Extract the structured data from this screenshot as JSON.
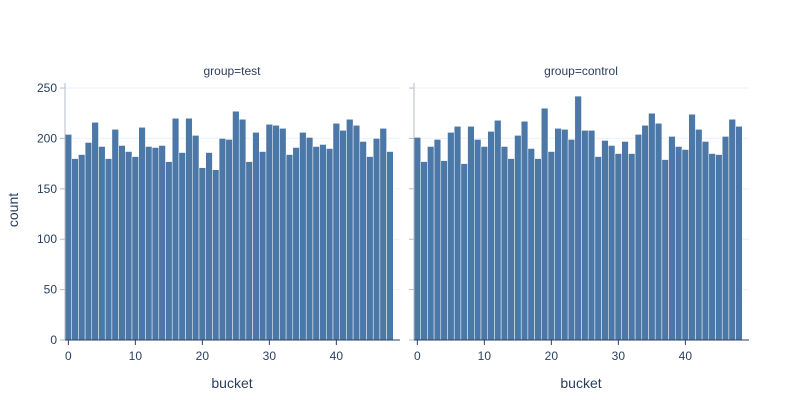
{
  "chart_data": {
    "type": "bar",
    "ylabel": "count",
    "xlabel": "bucket",
    "ylim": [
      0,
      255
    ],
    "xlim": [
      -0.5,
      49.5
    ],
    "xticks": [
      0,
      10,
      20,
      30,
      40
    ],
    "yticks": [
      0,
      50,
      100,
      150,
      200,
      250
    ],
    "bar_color": "#4c78a8",
    "grid": true,
    "panels": [
      {
        "title": "group=test",
        "x": [
          0,
          1,
          2,
          3,
          4,
          5,
          6,
          7,
          8,
          9,
          10,
          11,
          12,
          13,
          14,
          15,
          16,
          17,
          18,
          19,
          20,
          21,
          22,
          23,
          24,
          25,
          26,
          27,
          28,
          29,
          30,
          31,
          32,
          33,
          34,
          35,
          36,
          37,
          38,
          39,
          40,
          41,
          42,
          43,
          44,
          45,
          46,
          47,
          48,
          49
        ],
        "values": [
          204,
          180,
          184,
          196,
          216,
          192,
          180,
          209,
          193,
          187,
          182,
          211,
          192,
          191,
          193,
          177,
          220,
          186,
          220,
          203,
          171,
          186,
          169,
          200,
          199,
          227,
          219,
          177,
          206,
          187,
          214,
          213,
          210,
          184,
          191,
          206,
          201,
          192,
          194,
          190,
          215,
          208,
          219,
          213,
          197,
          182,
          200,
          210,
          187,
          0
        ]
      },
      {
        "title": "group=control",
        "x": [
          0,
          1,
          2,
          3,
          4,
          5,
          6,
          7,
          8,
          9,
          10,
          11,
          12,
          13,
          14,
          15,
          16,
          17,
          18,
          19,
          20,
          21,
          22,
          23,
          24,
          25,
          26,
          27,
          28,
          29,
          30,
          31,
          32,
          33,
          34,
          35,
          36,
          37,
          38,
          39,
          40,
          41,
          42,
          43,
          44,
          45,
          46,
          47,
          48,
          49
        ],
        "values": [
          201,
          177,
          192,
          199,
          178,
          206,
          212,
          175,
          212,
          199,
          192,
          207,
          218,
          192,
          180,
          203,
          217,
          190,
          180,
          230,
          187,
          210,
          209,
          199,
          242,
          208,
          208,
          182,
          198,
          193,
          185,
          197,
          185,
          204,
          213,
          225,
          215,
          179,
          202,
          192,
          189,
          224,
          209,
          197,
          185,
          184,
          202,
          219,
          212,
          0
        ]
      }
    ]
  }
}
